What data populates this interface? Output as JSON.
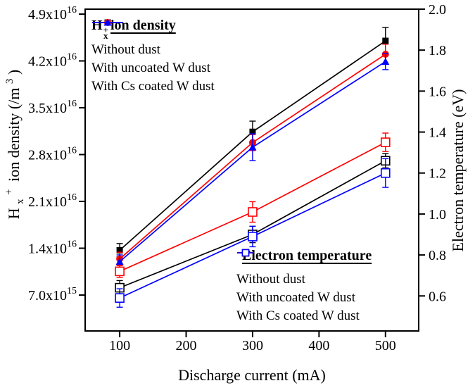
{
  "chart_data": {
    "type": "line",
    "title": "",
    "xlabel": "Discharge current (mA)",
    "ylabel_left_parts": {
      "h": "H",
      "sub": "x",
      "sup": "+",
      "mid": "ion density (/m",
      "sup3": "3",
      "end": ")"
    },
    "ylabel_right": "Electron temperature (eV)",
    "x_ticks": [
      "100",
      "200",
      "300",
      "400",
      "500"
    ],
    "x_tick_values": [
      100,
      200,
      300,
      400,
      500
    ],
    "x_range": [
      48,
      550
    ],
    "y_left_tick_labels": [
      "7.0x10^15",
      "1.4x10^16",
      "2.1x10^16",
      "2.8x10^16",
      "3.5x10^16",
      "4.2x10^16",
      "4.9x10^16"
    ],
    "y_left_tick_values_1e16": [
      0.7,
      1.4,
      2.1,
      2.8,
      3.5,
      4.2,
      4.9
    ],
    "y_left_range_1e16": [
      0.163,
      4.974
    ],
    "y_right_tick_labels": [
      "0.6",
      "0.8",
      "1.0",
      "1.2",
      "1.4",
      "1.6",
      "1.8",
      "2.0"
    ],
    "y_right_tick_values": [
      0.6,
      0.8,
      1.0,
      1.2,
      1.4,
      1.6,
      1.8,
      2.0
    ],
    "y_right_range": [
      0.429,
      2.0
    ],
    "grid": false,
    "x": [
      100,
      300,
      500
    ],
    "density_series": [
      {
        "name": "Without dust",
        "color": "#000000",
        "marker": "square-filled",
        "values_1e16": [
          1.37,
          3.14,
          4.5
        ],
        "errors_1e16": [
          0.1,
          0.16,
          0.2
        ]
      },
      {
        "name": "With uncoated W dust",
        "color": "#ff0000",
        "marker": "circle-filled",
        "values_1e16": [
          1.24,
          2.98,
          4.3
        ],
        "errors_1e16": [
          0.1,
          0.12,
          0.15
        ]
      },
      {
        "name": "With Cs coated W dust",
        "color": "#0000ff",
        "marker": "triangle-filled",
        "values_1e16": [
          1.2,
          2.91,
          4.19
        ],
        "errors_1e16": [
          0.1,
          0.2,
          0.12
        ]
      }
    ],
    "temperature_series": [
      {
        "name": "Without dust",
        "color": "#000000",
        "marker": "square-open",
        "values_eV": [
          0.64,
          0.9,
          1.26
        ],
        "errors_eV": [
          0.035,
          0.04,
          0.035
        ]
      },
      {
        "name": "With uncoated W dust",
        "color": "#ff0000",
        "marker": "square-open",
        "values_eV": [
          0.72,
          1.01,
          1.35
        ],
        "errors_eV": [
          0.03,
          0.05,
          0.045
        ]
      },
      {
        "name": "With Cs coated W dust",
        "color": "#0000ff",
        "marker": "square-open",
        "values_eV": [
          0.59,
          0.89,
          1.2
        ],
        "errors_eV": [
          0.045,
          0.05,
          0.07
        ]
      }
    ],
    "legend_density": {
      "title_h": "H",
      "title_sub": "x",
      "title_sup": "+",
      "title_rest": "ion density"
    },
    "legend_temperature": {
      "title": "Electron temperature"
    }
  }
}
